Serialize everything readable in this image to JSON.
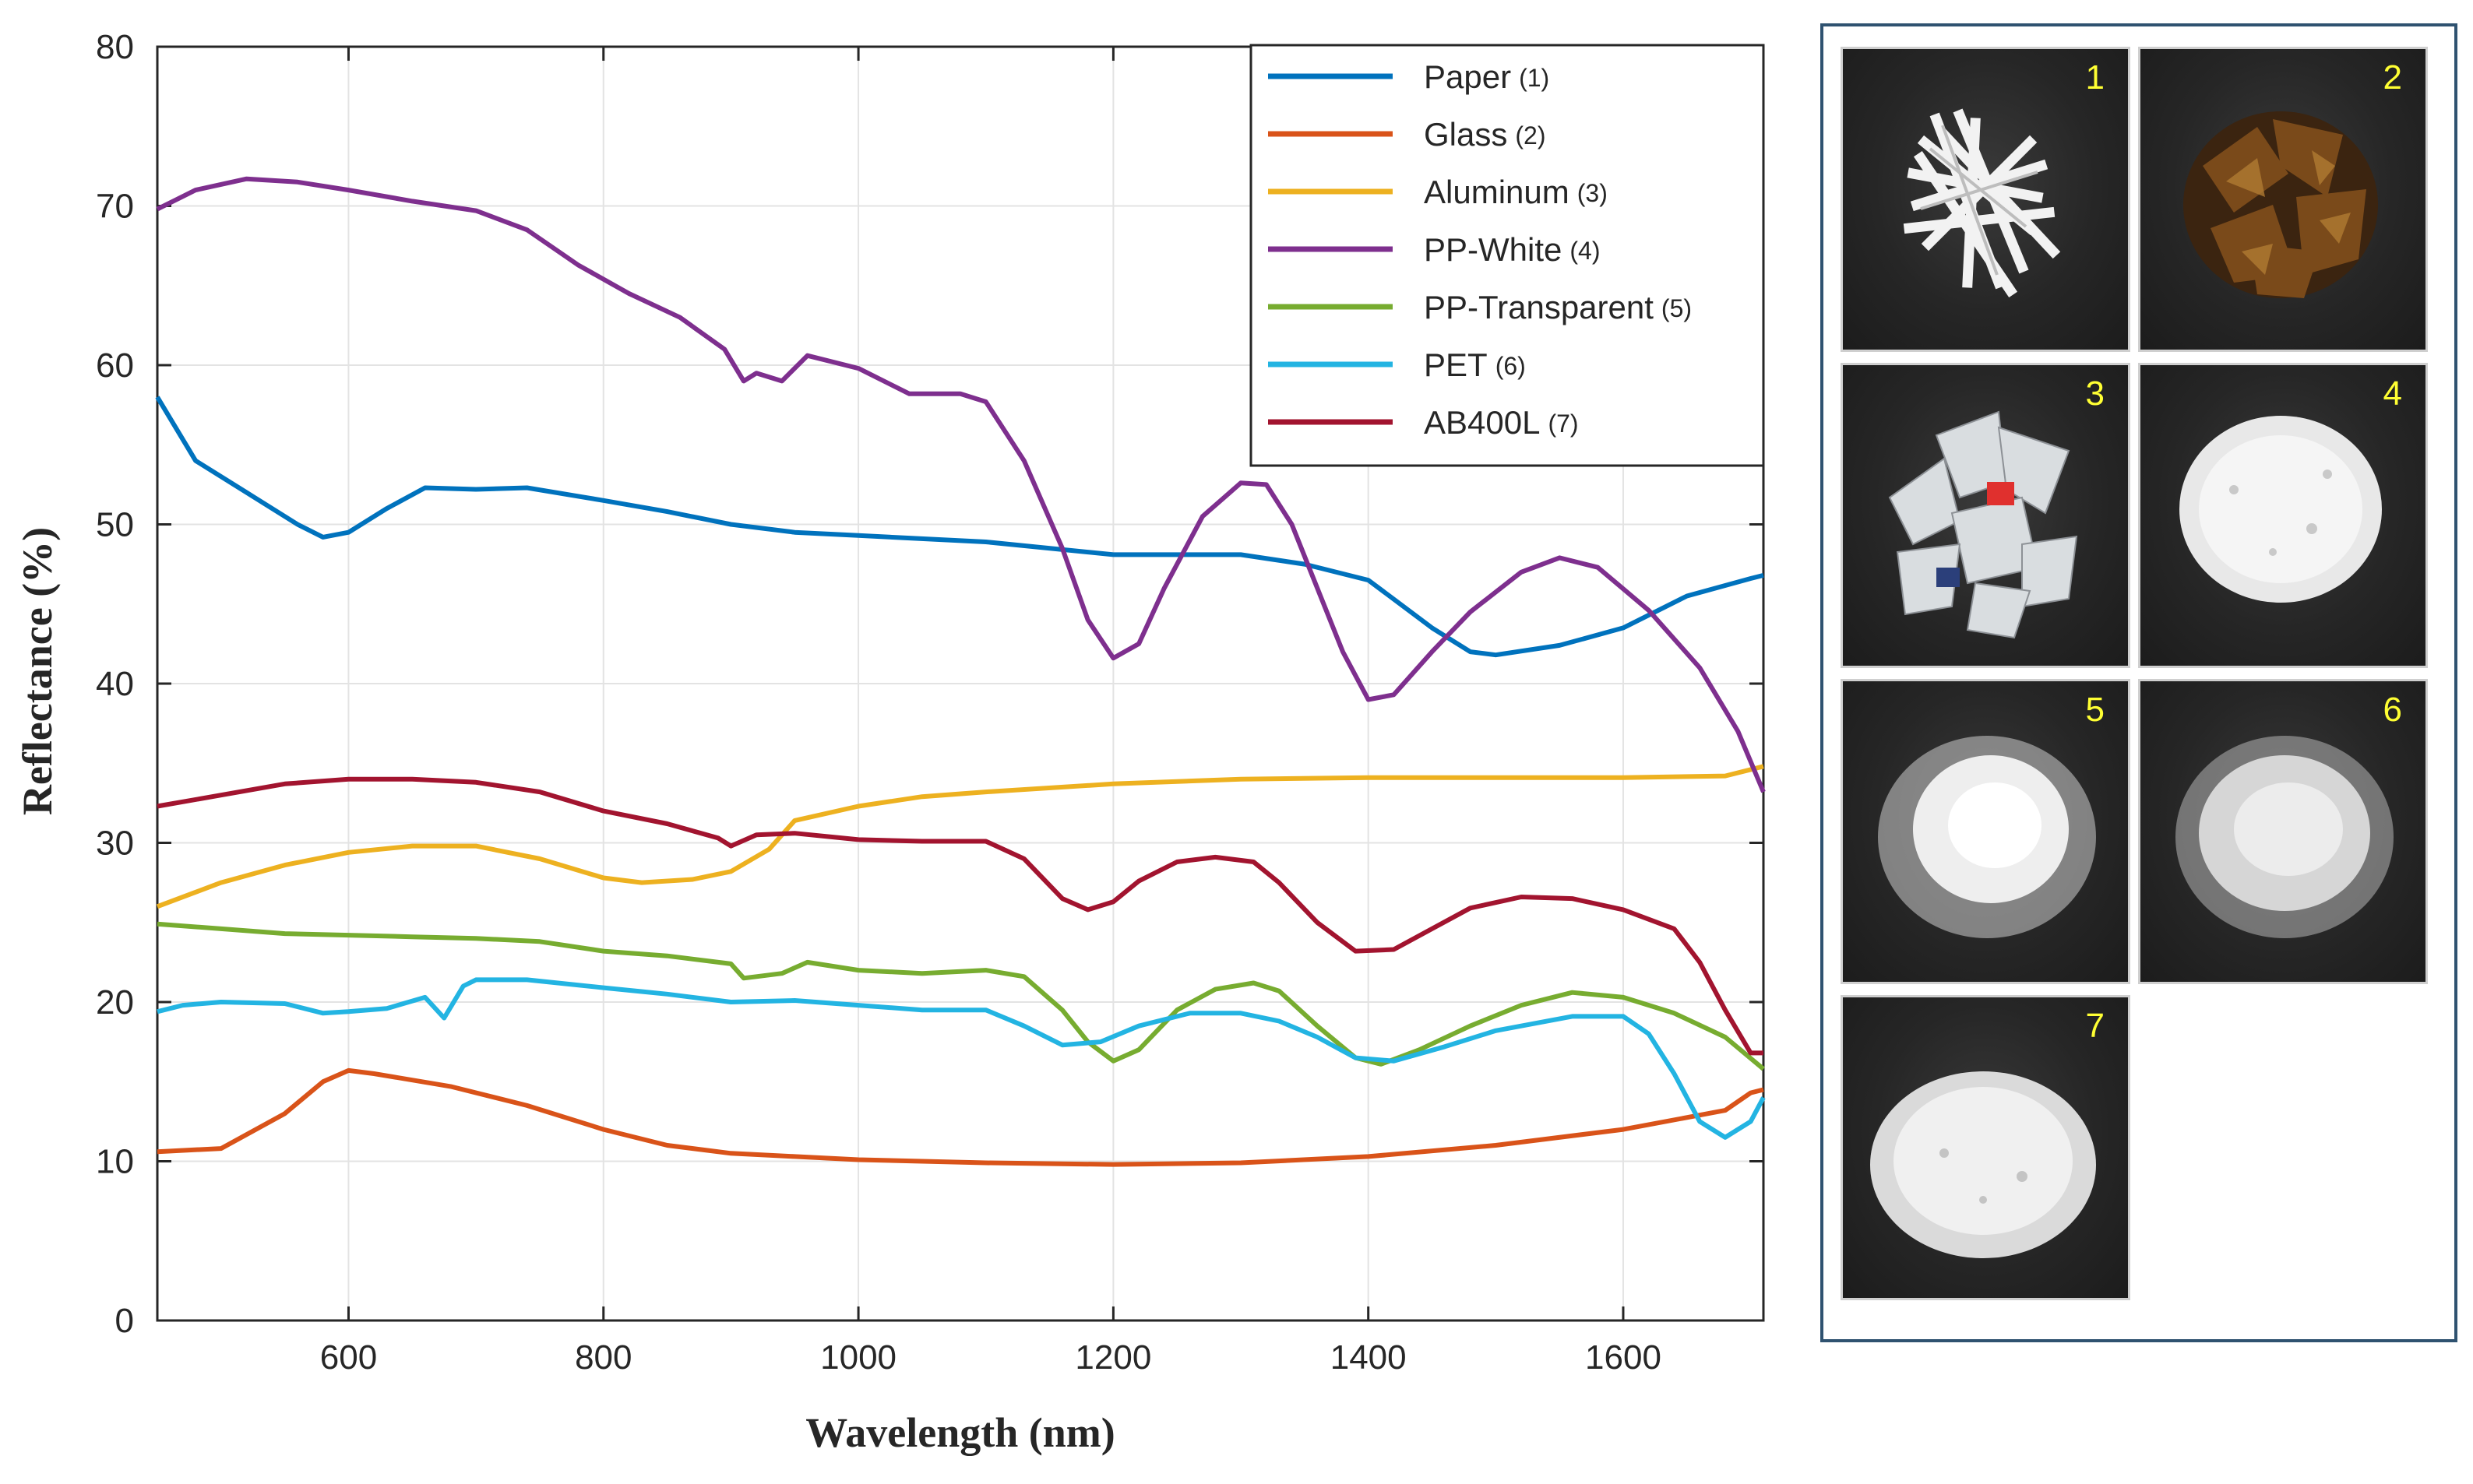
{
  "chart_data": {
    "type": "line",
    "xlabel": "Wavelength (nm)",
    "ylabel": "Reflectance  (%)",
    "xlim": [
      450,
      1710
    ],
    "ylim": [
      0,
      80
    ],
    "xticks": [
      600,
      800,
      1000,
      1200,
      1400,
      1600
    ],
    "yticks": [
      0,
      10,
      20,
      30,
      40,
      50,
      60,
      70,
      80
    ],
    "grid": true,
    "legend_position": "top-right",
    "series": [
      {
        "name": "Paper",
        "num": "(1)",
        "color": "#0072bd",
        "x": [
          450,
          480,
          520,
          560,
          580,
          600,
          630,
          660,
          700,
          740,
          800,
          850,
          900,
          950,
          1000,
          1100,
          1200,
          1300,
          1350,
          1400,
          1450,
          1480,
          1500,
          1550,
          1600,
          1650,
          1700,
          1710
        ],
        "y": [
          58,
          54,
          52,
          50,
          49.2,
          49.5,
          51,
          52.3,
          52.2,
          52.3,
          51.5,
          50.8,
          50,
          49.5,
          49.3,
          48.9,
          48.1,
          48.1,
          47.5,
          46.5,
          43.5,
          42,
          41.8,
          42.4,
          43.5,
          45.5,
          46.6,
          46.8
        ]
      },
      {
        "name": "Glass",
        "num": "(2)",
        "color": "#d95319",
        "x": [
          450,
          500,
          550,
          580,
          600,
          620,
          680,
          740,
          800,
          850,
          900,
          950,
          1000,
          1100,
          1200,
          1300,
          1400,
          1500,
          1600,
          1680,
          1700,
          1710
        ],
        "y": [
          10.6,
          10.8,
          13,
          15,
          15.7,
          15.5,
          14.7,
          13.5,
          12,
          11,
          10.5,
          10.3,
          10.1,
          9.9,
          9.8,
          9.9,
          10.3,
          11,
          12,
          13.2,
          14.3,
          14.5
        ]
      },
      {
        "name": "Aluminum",
        "num": "(3)",
        "color": "#edb120",
        "x": [
          450,
          500,
          550,
          600,
          650,
          700,
          750,
          800,
          830,
          870,
          900,
          930,
          950,
          1000,
          1050,
          1100,
          1200,
          1300,
          1400,
          1500,
          1600,
          1680,
          1710
        ],
        "y": [
          26,
          27.5,
          28.6,
          29.4,
          29.8,
          29.8,
          29,
          27.8,
          27.5,
          27.7,
          28.2,
          29.6,
          31.4,
          32.3,
          32.9,
          33.2,
          33.7,
          34,
          34.1,
          34.1,
          34.1,
          34.2,
          34.8
        ]
      },
      {
        "name": "PP-White",
        "num": "(4)",
        "color": "#7e2f8e",
        "x": [
          450,
          480,
          520,
          560,
          600,
          650,
          700,
          740,
          780,
          820,
          860,
          895,
          910,
          920,
          940,
          960,
          1000,
          1040,
          1080,
          1100,
          1130,
          1160,
          1180,
          1200,
          1220,
          1240,
          1270,
          1300,
          1320,
          1340,
          1360,
          1380,
          1400,
          1420,
          1450,
          1480,
          1520,
          1550,
          1580,
          1620,
          1660,
          1690,
          1710
        ],
        "y": [
          69.8,
          71,
          71.7,
          71.5,
          71,
          70.3,
          69.7,
          68.5,
          66.3,
          64.5,
          63,
          61,
          59,
          59.5,
          59,
          60.6,
          59.8,
          58.2,
          58.2,
          57.7,
          54,
          48.5,
          44,
          41.6,
          42.5,
          46,
          50.5,
          52.6,
          52.5,
          50,
          46,
          42,
          39,
          39.3,
          42,
          44.5,
          47,
          47.9,
          47.3,
          44.6,
          41,
          37,
          33.2
        ]
      },
      {
        "name": "PP-Transparent",
        "num": "(5)",
        "color": "#77ac30",
        "x": [
          450,
          500,
          550,
          600,
          650,
          700,
          750,
          800,
          850,
          900,
          910,
          920,
          940,
          960,
          1000,
          1050,
          1100,
          1130,
          1160,
          1180,
          1200,
          1220,
          1250,
          1280,
          1310,
          1330,
          1360,
          1390,
          1410,
          1440,
          1480,
          1520,
          1560,
          1600,
          1640,
          1680,
          1710
        ],
        "y": [
          24.9,
          24.6,
          24.3,
          24.2,
          24.1,
          24,
          23.8,
          23.2,
          22.9,
          22.4,
          21.5,
          21.6,
          21.8,
          22.5,
          22,
          21.8,
          22,
          21.6,
          19.5,
          17.5,
          16.3,
          17,
          19.5,
          20.8,
          21.2,
          20.7,
          18.5,
          16.5,
          16.1,
          17,
          18.5,
          19.8,
          20.6,
          20.3,
          19.3,
          17.8,
          15.8
        ]
      },
      {
        "name": "PET",
        "num": "(6)",
        "color": "#23b4e2",
        "x": [
          450,
          470,
          500,
          550,
          580,
          600,
          630,
          660,
          675,
          690,
          700,
          740,
          800,
          850,
          900,
          950,
          1000,
          1050,
          1100,
          1130,
          1160,
          1190,
          1220,
          1260,
          1300,
          1330,
          1360,
          1390,
          1420,
          1460,
          1500,
          1560,
          1600,
          1620,
          1640,
          1660,
          1680,
          1700,
          1710
        ],
        "y": [
          19.4,
          19.8,
          20,
          19.9,
          19.3,
          19.4,
          19.6,
          20.3,
          19,
          21,
          21.4,
          21.4,
          20.9,
          20.5,
          20,
          20.1,
          19.8,
          19.5,
          19.5,
          18.5,
          17.3,
          17.5,
          18.5,
          19.3,
          19.3,
          18.8,
          17.8,
          16.5,
          16.3,
          17.2,
          18.2,
          19.1,
          19.1,
          18,
          15.5,
          12.5,
          11.5,
          12.5,
          14
        ]
      },
      {
        "name": "AB400L",
        "num": "(7)",
        "color": "#a2142f",
        "x": [
          450,
          500,
          550,
          600,
          650,
          700,
          750,
          800,
          850,
          890,
          900,
          920,
          950,
          1000,
          1050,
          1100,
          1130,
          1160,
          1180,
          1200,
          1220,
          1250,
          1280,
          1310,
          1330,
          1360,
          1390,
          1420,
          1450,
          1480,
          1520,
          1560,
          1600,
          1640,
          1660,
          1680,
          1700,
          1710
        ],
        "y": [
          32.3,
          33,
          33.7,
          34,
          34,
          33.8,
          33.2,
          32,
          31.2,
          30.3,
          29.8,
          30.5,
          30.6,
          30.2,
          30.1,
          30.1,
          29,
          26.5,
          25.8,
          26.3,
          27.6,
          28.8,
          29.1,
          28.8,
          27.5,
          25,
          23.2,
          23.3,
          24.6,
          25.9,
          26.6,
          26.5,
          25.8,
          24.6,
          22.5,
          19.5,
          16.8,
          16.8
        ]
      }
    ]
  },
  "samples": [
    {
      "number": "1",
      "material": "paper"
    },
    {
      "number": "2",
      "material": "glass"
    },
    {
      "number": "3",
      "material": "aluminum"
    },
    {
      "number": "4",
      "material": "pp-white"
    },
    {
      "number": "5",
      "material": "pp-transparent"
    },
    {
      "number": "6",
      "material": "pet"
    },
    {
      "number": "7",
      "material": "ab400l"
    }
  ]
}
